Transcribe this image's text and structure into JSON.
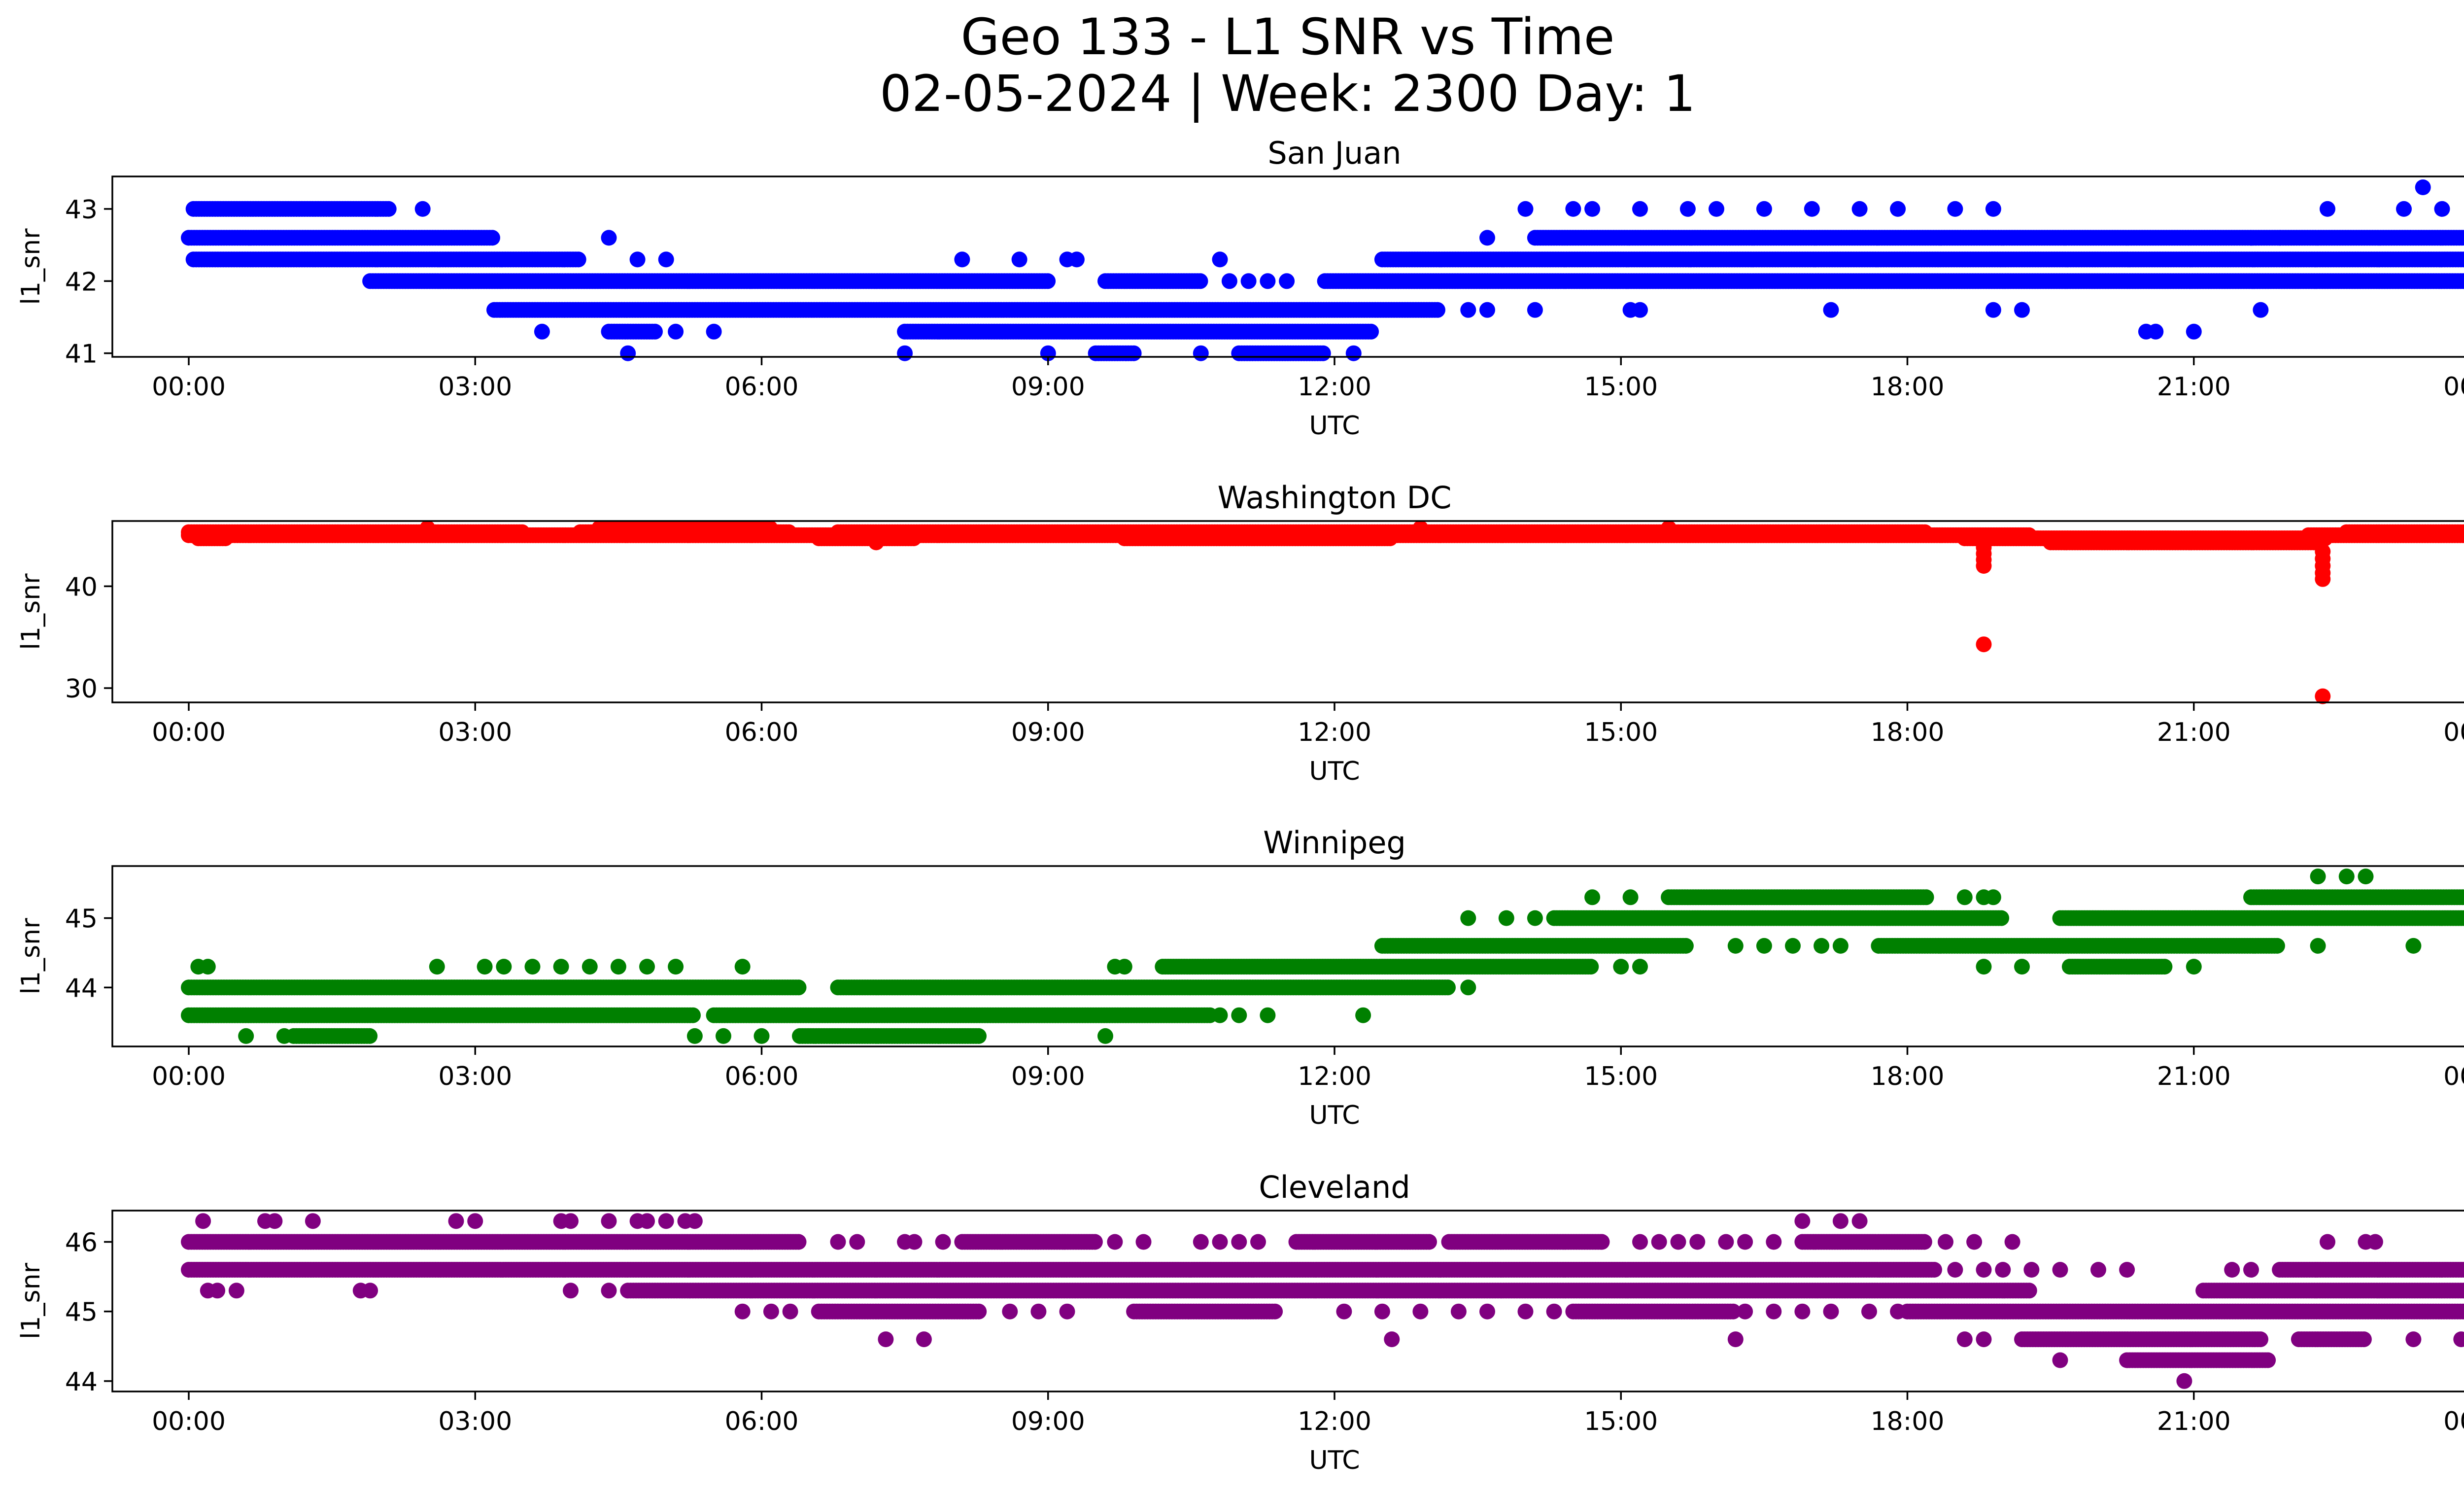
{
  "figure": {
    "title_line1": "Geo 133 - L1 SNR vs Time",
    "title_line2": "02-05-2024 | Week: 2300 Day: 1"
  },
  "chart_data": [
    {
      "type": "scatter",
      "title": "San Juan",
      "xlabel": "UTC",
      "ylabel": "l1_snr",
      "color": "#0000ff",
      "xlim": [
        -0.8,
        24.8
      ],
      "ylim": [
        40.95,
        43.45
      ],
      "yticks": [
        41,
        42,
        43
      ],
      "xticks": [
        "00:00",
        "03:00",
        "06:00",
        "09:00",
        "12:00",
        "15:00",
        "18:00",
        "21:00",
        "00:00"
      ],
      "bands": [
        {
          "y": 43.0,
          "segments": [
            [
              0.05,
              2.1
            ]
          ],
          "points": [
            2.45,
            14.0,
            14.5,
            14.7,
            15.2,
            15.7,
            16.0,
            16.5,
            17.0,
            17.5,
            17.9,
            18.5,
            18.9,
            22.4,
            23.2,
            23.6,
            24.0
          ]
        },
        {
          "y": 42.6,
          "segments": [
            [
              0.0,
              3.2
            ],
            [
              14.1,
              24.0
            ]
          ],
          "points": [
            4.4,
            13.6,
            21.6,
            21.9
          ]
        },
        {
          "y": 42.3,
          "segments": [
            [
              0.05,
              4.1
            ],
            [
              12.5,
              24.0
            ]
          ],
          "points": [
            4.7,
            5.0,
            8.1,
            8.7,
            9.2,
            9.3,
            10.8
          ]
        },
        {
          "y": 42.0,
          "segments": [
            [
              1.9,
              9.0
            ],
            [
              9.6,
              10.6
            ],
            [
              11.9,
              23.9
            ]
          ],
          "points": [
            10.9,
            11.1,
            11.3,
            11.5
          ]
        },
        {
          "y": 41.6,
          "segments": [
            [
              3.2,
              13.1
            ]
          ],
          "points": [
            13.4,
            13.6,
            14.1,
            15.1,
            15.2,
            17.2,
            18.9,
            19.2,
            21.7
          ]
        },
        {
          "y": 41.3,
          "segments": [
            [
              4.4,
              4.9
            ],
            [
              7.5,
              12.4
            ]
          ],
          "points": [
            3.7,
            5.1,
            5.5,
            20.5,
            20.6,
            21.0
          ]
        },
        {
          "y": 41.0,
          "segments": [
            [
              9.5,
              9.9
            ],
            [
              11.0,
              11.9
            ]
          ],
          "points": [
            4.6,
            7.5,
            9.0,
            10.6,
            12.2
          ]
        }
      ],
      "extra_points": [
        {
          "x": 23.4,
          "y": 43.3
        }
      ]
    },
    {
      "type": "scatter",
      "title": "Washington DC",
      "xlabel": "UTC",
      "ylabel": "l1_snr",
      "color": "#ff0000",
      "xlim": [
        -0.8,
        24.8
      ],
      "ylim": [
        28.6,
        46.4
      ],
      "yticks": [
        30,
        40
      ],
      "xticks": [
        "00:00",
        "03:00",
        "06:00",
        "09:00",
        "12:00",
        "15:00",
        "18:00",
        "21:00",
        "00:00"
      ],
      "bands": [
        {
          "y": 45.3,
          "segments": [
            [
              0.0,
              3.5
            ],
            [
              4.1,
              6.3
            ],
            [
              6.8,
              18.2
            ],
            [
              22.6,
              24.0
            ]
          ],
          "points": []
        },
        {
          "y": 45.0,
          "segments": [
            [
              0.0,
              19.3
            ],
            [
              22.2,
              24.0
            ]
          ],
          "points": []
        },
        {
          "y": 44.7,
          "segments": [
            [
              0.1,
              0.4
            ],
            [
              6.6,
              7.6
            ],
            [
              9.8,
              12.6
            ],
            [
              18.6,
              22.4
            ]
          ],
          "points": []
        },
        {
          "y": 44.3,
          "segments": [
            [
              19.5,
              22.3
            ]
          ],
          "points": [
            7.2
          ]
        },
        {
          "y": 45.7,
          "segments": [
            [
              4.3,
              6.1
            ]
          ],
          "points": [
            2.5,
            12.9,
            15.5
          ]
        }
      ],
      "extra_points": [
        {
          "x": 18.8,
          "y": 42.0
        },
        {
          "x": 18.8,
          "y": 42.6
        },
        {
          "x": 18.8,
          "y": 43.2
        },
        {
          "x": 18.8,
          "y": 43.8
        },
        {
          "x": 18.8,
          "y": 34.3
        },
        {
          "x": 22.35,
          "y": 40.7
        },
        {
          "x": 22.35,
          "y": 41.3
        },
        {
          "x": 22.35,
          "y": 42.0
        },
        {
          "x": 22.35,
          "y": 42.7
        },
        {
          "x": 22.35,
          "y": 43.4
        },
        {
          "x": 22.35,
          "y": 29.2
        }
      ]
    },
    {
      "type": "scatter",
      "title": "Winnipeg",
      "xlabel": "UTC",
      "ylabel": "l1_snr",
      "color": "#008000",
      "xlim": [
        -0.8,
        24.8
      ],
      "ylim": [
        43.15,
        45.75
      ],
      "yticks": [
        44,
        45
      ],
      "xticks": [
        "00:00",
        "03:00",
        "06:00",
        "09:00",
        "12:00",
        "15:00",
        "18:00",
        "21:00",
        "00:00"
      ],
      "bands": [
        {
          "y": 45.6,
          "segments": [],
          "points": [
            22.3,
            22.6,
            22.8
          ]
        },
        {
          "y": 45.3,
          "segments": [
            [
              15.5,
              18.2
            ],
            [
              21.6,
              24.0
            ]
          ],
          "points": [
            14.7,
            15.1,
            18.6,
            18.8,
            18.9
          ]
        },
        {
          "y": 45.0,
          "segments": [
            [
              14.3,
              19.0
            ],
            [
              19.6,
              24.0
            ]
          ],
          "points": [
            13.4,
            13.8,
            14.1
          ]
        },
        {
          "y": 44.6,
          "segments": [
            [
              12.5,
              15.7
            ],
            [
              17.7,
              21.9
            ]
          ],
          "points": [
            16.2,
            16.5,
            16.8,
            17.1,
            17.3,
            22.3,
            23.3,
            24.0
          ]
        },
        {
          "y": 44.3,
          "segments": [
            [
              10.2,
              14.7
            ],
            [
              19.7,
              20.7
            ]
          ],
          "points": [
            0.1,
            0.2,
            2.6,
            3.1,
            3.3,
            3.6,
            3.9,
            4.2,
            4.5,
            4.8,
            5.1,
            5.8,
            9.7,
            9.8,
            15.0,
            15.2,
            18.8,
            19.2,
            21.0
          ]
        },
        {
          "y": 44.0,
          "segments": [
            [
              0.0,
              6.4
            ],
            [
              6.8,
              13.2
            ]
          ],
          "points": [
            13.4
          ]
        },
        {
          "y": 43.6,
          "segments": [
            [
              0.0,
              5.3
            ],
            [
              5.5,
              10.7
            ]
          ],
          "points": [
            10.8,
            11.0,
            11.3,
            12.3
          ]
        },
        {
          "y": 43.3,
          "segments": [
            [
              1.1,
              1.9
            ],
            [
              6.4,
              8.3
            ]
          ],
          "points": [
            0.6,
            1.0,
            5.3,
            5.6,
            6.0,
            9.6
          ]
        }
      ],
      "extra_points": []
    },
    {
      "type": "scatter",
      "title": "Cleveland",
      "xlabel": "UTC",
      "ylabel": "l1_snr",
      "color": "#800080",
      "xlim": [
        -0.8,
        24.8
      ],
      "ylim": [
        43.85,
        46.45
      ],
      "yticks": [
        44,
        45,
        46
      ],
      "xticks": [
        "00:00",
        "03:00",
        "06:00",
        "09:00",
        "12:00",
        "15:00",
        "18:00",
        "21:00",
        "00:00"
      ],
      "bands": [
        {
          "y": 46.3,
          "segments": [],
          "points": [
            0.15,
            0.8,
            0.9,
            1.3,
            2.8,
            3.0,
            3.9,
            4.0,
            4.4,
            4.7,
            4.8,
            5.0,
            5.2,
            5.3,
            16.9,
            17.3,
            17.5
          ]
        },
        {
          "y": 46.0,
          "segments": [
            [
              0.0,
              6.4
            ],
            [
              8.1,
              9.5
            ],
            [
              11.6,
              13.0
            ],
            [
              13.2,
              14.8
            ],
            [
              16.9,
              18.2
            ]
          ],
          "points": [
            6.8,
            7.0,
            7.5,
            7.6,
            7.9,
            9.7,
            10.0,
            10.6,
            10.8,
            11.0,
            11.2,
            14.8,
            15.2,
            15.4,
            15.6,
            15.8,
            16.1,
            16.3,
            16.6,
            18.4,
            18.7,
            19.1,
            22.4,
            22.8,
            22.9,
            24.0
          ]
        },
        {
          "y": 45.6,
          "segments": [
            [
              0.0,
              18.3
            ],
            [
              21.9,
              24.0
            ]
          ],
          "points": [
            18.5,
            18.8,
            19.0,
            19.3,
            19.6,
            20.0,
            20.3,
            21.4,
            21.6
          ]
        },
        {
          "y": 45.3,
          "segments": [
            [
              4.6,
              19.3
            ],
            [
              21.1,
              24.0
            ]
          ],
          "points": [
            0.2,
            0.3,
            0.5,
            1.8,
            1.9,
            4.0,
            4.4
          ]
        },
        {
          "y": 45.0,
          "segments": [
            [
              6.6,
              8.3
            ],
            [
              9.9,
              11.4
            ],
            [
              14.5,
              16.2
            ],
            [
              18.0,
              24.0
            ]
          ],
          "points": [
            5.8,
            6.1,
            6.3,
            8.6,
            8.9,
            9.2,
            12.1,
            12.5,
            12.9,
            13.3,
            13.6,
            14.0,
            14.3,
            16.3,
            16.6,
            16.9,
            17.2,
            17.6,
            17.9
          ]
        },
        {
          "y": 44.6,
          "segments": [
            [
              19.2,
              21.7
            ],
            [
              22.1,
              22.8
            ]
          ],
          "points": [
            7.3,
            7.7,
            12.6,
            16.2,
            18.6,
            18.8,
            23.3,
            23.8
          ]
        },
        {
          "y": 44.3,
          "segments": [
            [
              20.3,
              21.8
            ]
          ],
          "points": [
            19.6
          ]
        },
        {
          "y": 44.0,
          "segments": [],
          "points": [
            20.9
          ]
        }
      ],
      "extra_points": []
    }
  ]
}
